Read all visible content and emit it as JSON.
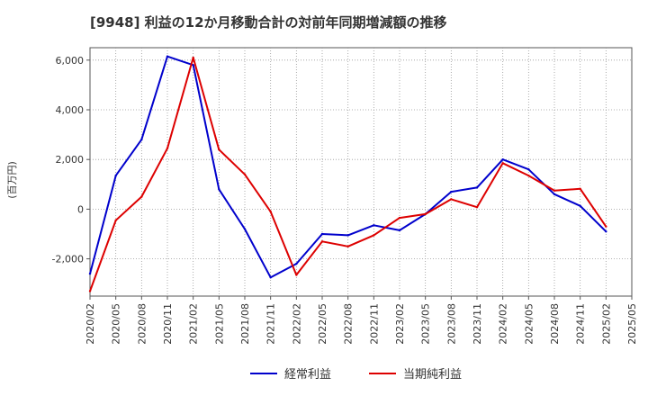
{
  "chart_data": {
    "type": "line",
    "title": "[9948]  利益の12か月移動合計の対前年同期増減額の推移",
    "ylabel": "(百万円)",
    "xlabel": "",
    "ylim": [
      -3500,
      6500
    ],
    "yticks": [
      -2000,
      0,
      2000,
      4000,
      6000
    ],
    "ytick_labels": [
      "-2,000",
      "0",
      "2,000",
      "4,000",
      "6,000"
    ],
    "grid": true,
    "legend_position": "bottom",
    "categories": [
      "2020/02",
      "2020/05",
      "2020/08",
      "2020/11",
      "2021/02",
      "2021/05",
      "2021/08",
      "2021/11",
      "2022/02",
      "2022/05",
      "2022/08",
      "2022/11",
      "2023/02",
      "2023/05",
      "2023/08",
      "2023/11",
      "2024/02",
      "2024/05",
      "2024/08",
      "2024/11",
      "2025/02",
      "2025/05"
    ],
    "series": [
      {
        "name": "経常利益",
        "color": "#0000cc",
        "values": [
          -2600,
          1350,
          2800,
          6150,
          5800,
          800,
          -800,
          -2750,
          -2200,
          -1000,
          -1050,
          -650,
          -850,
          -200,
          700,
          870,
          2000,
          1600,
          600,
          130,
          -900,
          null
        ]
      },
      {
        "name": "当期純利益",
        "color": "#dd0000",
        "values": [
          -3300,
          -450,
          500,
          2450,
          6100,
          2400,
          1400,
          -100,
          -2650,
          -1300,
          -1500,
          -1050,
          -350,
          -200,
          400,
          80,
          1850,
          1350,
          750,
          820,
          -700,
          null
        ]
      }
    ]
  }
}
